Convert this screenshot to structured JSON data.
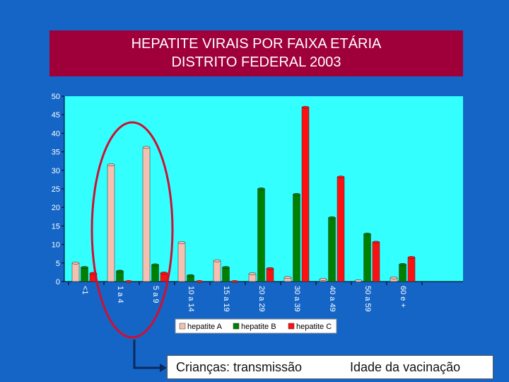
{
  "title": {
    "line1": "HEPATITE VIRAIS POR FAIXA ETÁRIA",
    "line2": "DISTRITO FEDERAL 2003"
  },
  "annotations": {
    "left": "Crianças: transmissão",
    "right": "Idade da vacinação"
  },
  "colors": {
    "background": "#1565c6",
    "title_bg": "#a0003a",
    "plot_bg": "#33ffff",
    "hepatite_a": "#f5c0b0",
    "hepatite_b": "#008000",
    "hepatite_c": "#ff1010",
    "ellipse": "#cc1133"
  },
  "chart_data": {
    "type": "bar",
    "categories": [
      "<1",
      "1 a 4",
      "5 a 9",
      "10 a 14",
      "15 a 19",
      "20 a 29",
      "30 a 39",
      "40 a 49",
      "50 a 59",
      "60 e +"
    ],
    "series": [
      {
        "name": "hepatite A",
        "values": [
          5,
          31.5,
          36.2,
          10.5,
          5.6,
          2.1,
          1.1,
          0.6,
          0.2,
          1.0
        ]
      },
      {
        "name": "hepatite B",
        "values": [
          3.8,
          2.8,
          4.5,
          1.6,
          3.8,
          25,
          23.5,
          17.2,
          12.8,
          4.6
        ]
      },
      {
        "name": "hepatite C",
        "values": [
          2.2,
          0,
          2.3,
          0,
          0,
          3.5,
          47,
          28.2,
          10.6,
          6.5
        ]
      }
    ],
    "yticks": [
      0,
      5,
      10,
      15,
      20,
      25,
      30,
      35,
      40,
      45,
      50
    ],
    "ylim": [
      0,
      50
    ],
    "grid": false,
    "legend_position": "bottom"
  }
}
